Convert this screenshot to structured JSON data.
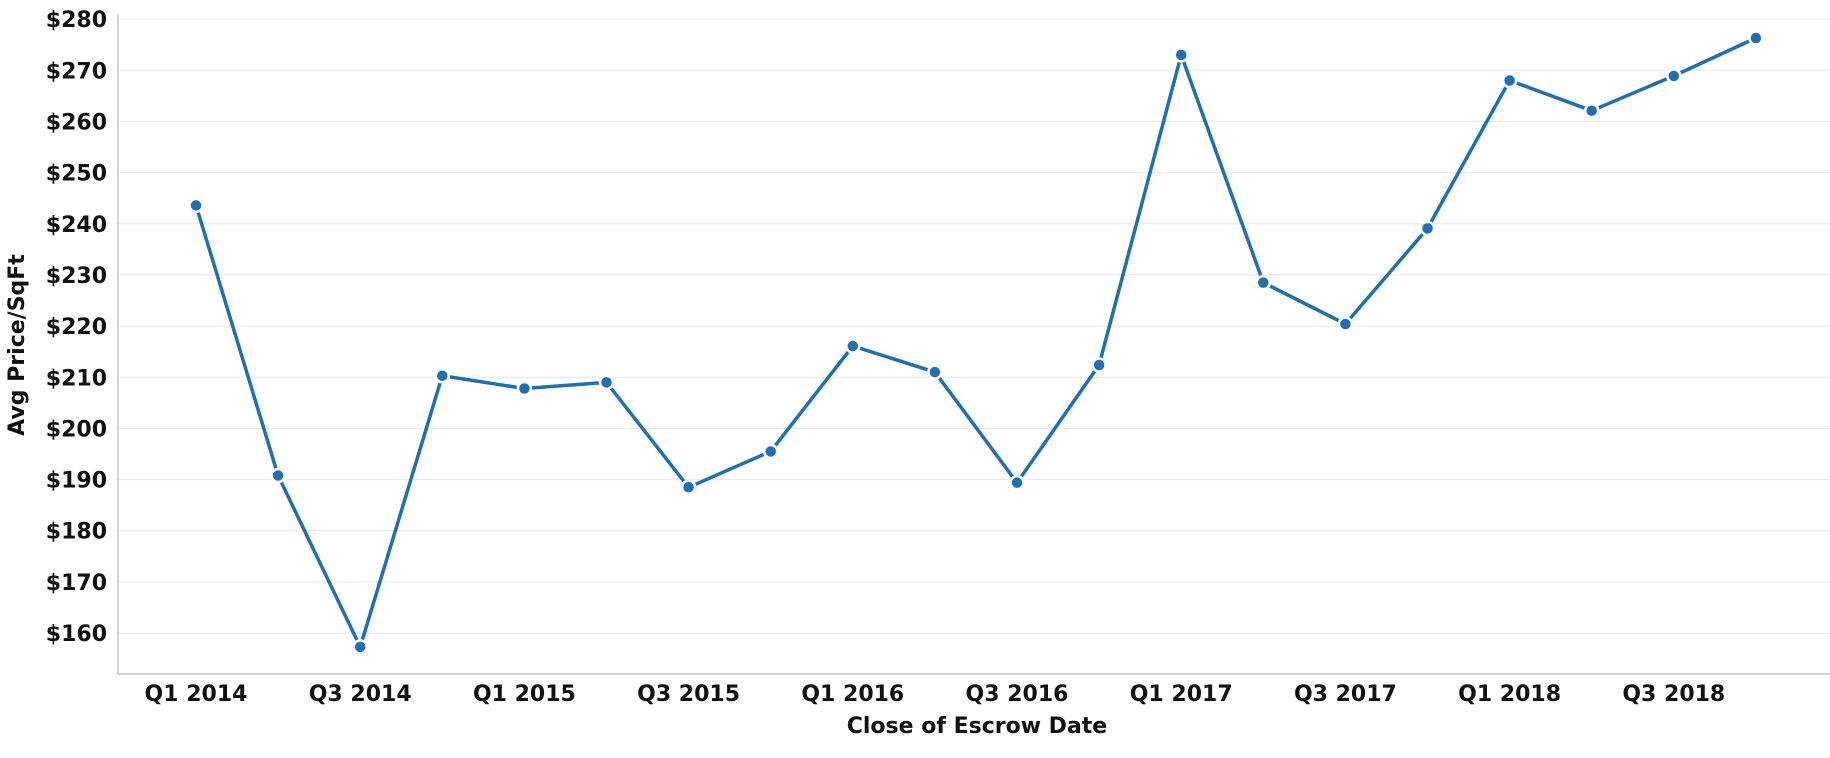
{
  "chart_data": {
    "type": "line",
    "title": "",
    "xlabel": "Close of Escrow Date",
    "ylabel": "Avg Price/SqFt",
    "categories": [
      "Q1 2014",
      "Q2 2014",
      "Q3 2014",
      "Q4 2014",
      "Q1 2015",
      "Q2 2015",
      "Q3 2015",
      "Q4 2015",
      "Q1 2016",
      "Q2 2016",
      "Q3 2016",
      "Q4 2016",
      "Q1 2017",
      "Q2 2017",
      "Q3 2017",
      "Q4 2017",
      "Q1 2018",
      "Q2 2018",
      "Q3 2018",
      "Q4 2018"
    ],
    "x_tick_labels": [
      "Q1 2014",
      "Q3 2014",
      "Q1 2015",
      "Q3 2015",
      "Q1 2016",
      "Q3 2016",
      "Q1 2017",
      "Q3 2017",
      "Q1 2018",
      "Q3 2018"
    ],
    "series": [
      {
        "values": [
          243.6,
          190.8,
          157.3,
          210.3,
          207.8,
          209.0,
          188.5,
          195.5,
          216.1,
          211.0,
          189.4,
          212.4,
          273.0,
          228.5,
          220.4,
          239.1,
          268.0,
          262.1,
          268.9,
          276.3
        ]
      }
    ],
    "ylim": [
      152,
      281
    ],
    "y_ticks": [
      160,
      170,
      180,
      190,
      200,
      210,
      220,
      230,
      240,
      250,
      260,
      270,
      280
    ],
    "y_tick_labels": [
      "$160",
      "$170",
      "$180",
      "$190",
      "$200",
      "$210",
      "$220",
      "$230",
      "$240",
      "$250",
      "$260",
      "$270",
      "$280"
    ],
    "grid": true,
    "legend": "none",
    "colors": {
      "line": "#1f6fb2",
      "marker_fill": "#1f6fb2",
      "marker_ring": "#ffffff",
      "grid": "#e8e8e8",
      "axis": "#c8c8c8"
    }
  }
}
